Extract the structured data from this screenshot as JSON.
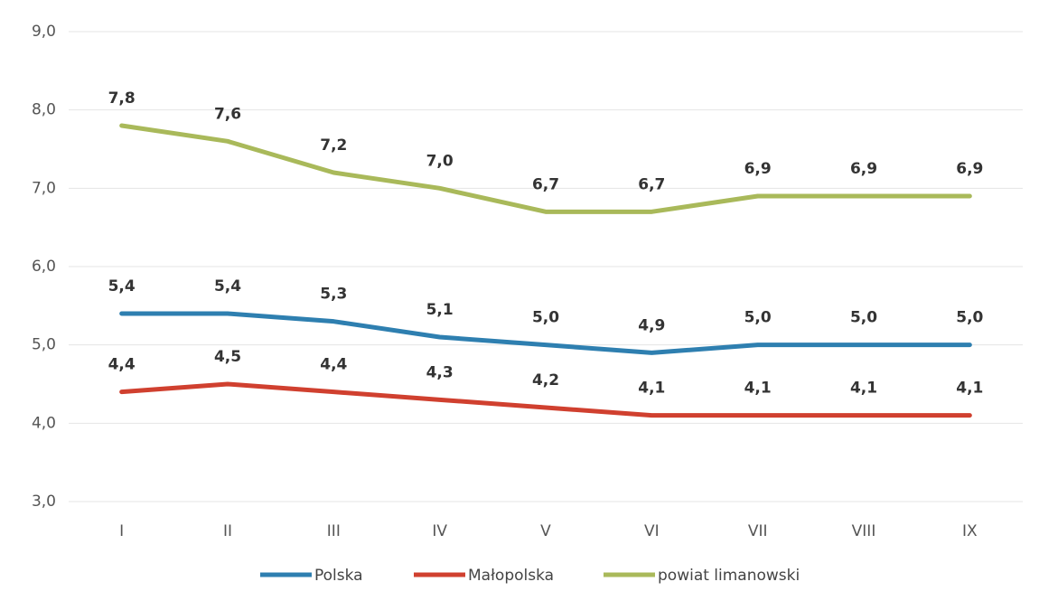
{
  "chart_data": {
    "type": "line",
    "categories": [
      "I",
      "II",
      "III",
      "IV",
      "V",
      "VI",
      "VII",
      "VIII",
      "IX"
    ],
    "series": [
      {
        "name": "Polska",
        "color": "#2e7fb0",
        "values": [
          5.4,
          5.4,
          5.3,
          5.1,
          5.0,
          4.9,
          5.0,
          5.0,
          5.0
        ],
        "value_labels": [
          "5,4",
          "5,4",
          "5,3",
          "5,1",
          "5,0",
          "4,9",
          "5,0",
          "5,0",
          "5,0"
        ]
      },
      {
        "name": "Małopolska",
        "color": "#d0402f",
        "values": [
          4.4,
          4.5,
          4.4,
          4.3,
          4.2,
          4.1,
          4.1,
          4.1,
          4.1
        ],
        "value_labels": [
          "4,4",
          "4,5",
          "4,4",
          "4,3",
          "4,2",
          "4,1",
          "4,1",
          "4,1",
          "4,1"
        ]
      },
      {
        "name": "powiat limanowski",
        "color": "#a9b95a",
        "values": [
          7.8,
          7.6,
          7.2,
          7.0,
          6.7,
          6.7,
          6.9,
          6.9,
          6.9
        ],
        "value_labels": [
          "7,8",
          "7,6",
          "7,2",
          "7,0",
          "6,7",
          "6,7",
          "6,9",
          "6,9",
          "6,9"
        ]
      }
    ],
    "ylim": [
      3,
      9
    ],
    "yticks": [
      {
        "value": 3,
        "label": "3,0"
      },
      {
        "value": 4,
        "label": "4,0"
      },
      {
        "value": 5,
        "label": "5,0"
      },
      {
        "value": 6,
        "label": "6,0"
      },
      {
        "value": 7,
        "label": "7,0"
      },
      {
        "value": 8,
        "label": "8,0"
      },
      {
        "value": 9,
        "label": "9,0"
      }
    ],
    "grid": true,
    "legend": "bottom"
  }
}
